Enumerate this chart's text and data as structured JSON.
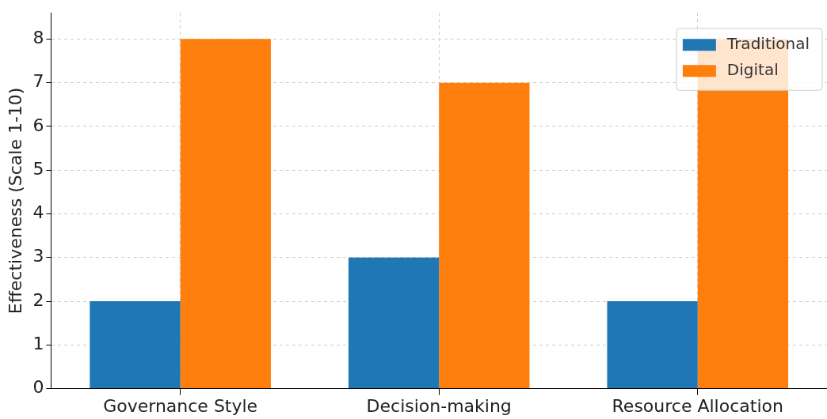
{
  "chart_data": {
    "type": "bar",
    "ylabel": "Effectiveness (Scale 1-10)",
    "categories": [
      "Governance Style",
      "Decision-making",
      "Resource Allocation"
    ],
    "series": [
      {
        "name": "Traditional",
        "color": "#1f77b4",
        "values": [
          2,
          3,
          2
        ]
      },
      {
        "name": "Digital",
        "color": "#ff7f0e",
        "values": [
          8,
          7,
          8
        ]
      }
    ],
    "ylim": [
      0,
      8.6
    ],
    "yticks": [
      0,
      1,
      2,
      3,
      4,
      5,
      6,
      7,
      8
    ],
    "grid": true,
    "legend": "top right"
  }
}
